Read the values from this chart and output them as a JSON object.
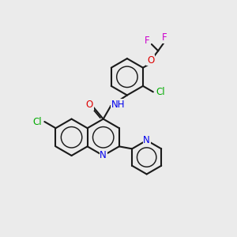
{
  "background_color": "#ebebeb",
  "line_color": "#1a1a1a",
  "bond_width": 1.5,
  "atom_colors": {
    "F": "#cc00cc",
    "O": "#dd0000",
    "Cl": "#00aa00",
    "N": "#0000ee",
    "C": "#1a1a1a"
  },
  "font_size": 8.5,
  "figsize": [
    3.0,
    3.0
  ],
  "dpi": 100
}
